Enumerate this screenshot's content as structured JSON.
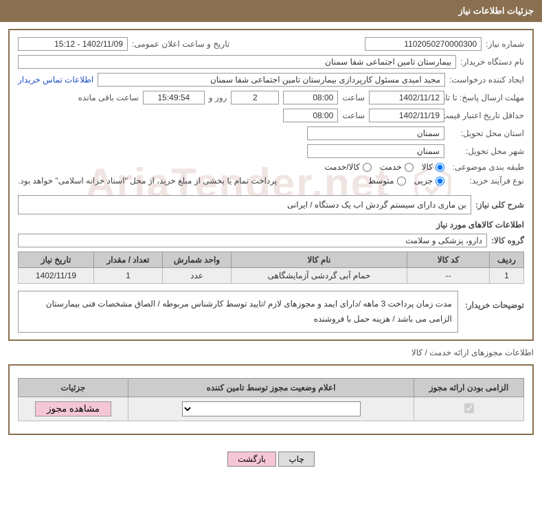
{
  "header": {
    "title": "جزئیات اطلاعات نیاز"
  },
  "info": {
    "need_no_label": "شماره نیاز:",
    "need_no": "1102050270000300",
    "announce_label": "تاریخ و ساعت اعلان عمومی:",
    "announce": "1402/11/09 - 15:12",
    "buyer_org_label": "نام دستگاه خریدار:",
    "buyer_org": "بیمارستان تامین اجتماعی شفا سمنان",
    "requester_label": "ایجاد کننده درخواست:",
    "requester": "مجید امیدی مسئول کارپردازی بیمارستان تامین اجتماعی شفا سمنان",
    "contact_link": "اطلاعات تماس خریدار",
    "reply_deadline_label": "مهلت ارسال پاسخ: تا تاریخ:",
    "reply_date": "1402/11/12",
    "time_label": "ساعت",
    "reply_time": "08:00",
    "days_remaining": "2",
    "days_remaining_suffix": "روز و",
    "time_remaining": "15:49:54",
    "time_remaining_suffix": "ساعت باقی مانده",
    "validity_label": "حداقل تاریخ اعتبار قیمت: تا تاریخ:",
    "validity_date": "1402/11/19",
    "validity_time": "08:00",
    "province_label": "استان محل تحویل:",
    "province": "سمنان",
    "city_label": "شهر محل تحویل:",
    "city": "سمنان",
    "category_label": "طبقه بندی موضوعی:",
    "cat_goods": "کالا",
    "cat_service": "خدمت",
    "cat_goods_service": "کالا/خدمت",
    "buy_type_label": "نوع فرآیند خرید:",
    "buy_partial": "جزیی",
    "buy_medium": "متوسط",
    "buy_note": "پرداخت تمام یا بخشی از مبلغ خرید، از محل \"اسناد خزانه اسلامی\" خواهد بود.",
    "desc_label": "شرح کلی نیاز:",
    "desc": "بن ماری دارای سیستم  گردش  اب یک دستگاه  / ایرانی",
    "goods_info_title": "اطلاعات کالاهای مورد نیاز",
    "goods_group_label": "گروه کالا:",
    "goods_group": "دارو، پزشکی و سلامت"
  },
  "table": {
    "headers": [
      "ردیف",
      "کد کالا",
      "نام کالا",
      "واحد شمارش",
      "تعداد / مقدار",
      "تاریخ نیاز"
    ],
    "rows": [
      [
        "1",
        "--",
        "حمام آبی گردشی آزمایشگاهی",
        "عدد",
        "1",
        "1402/11/19"
      ]
    ]
  },
  "buyer_notes": {
    "label": "توضیحات خریدار:",
    "text": "مدت زمان پرداخت 3 ماهه /دارای ایمد و مجوزهای لازم /تایید توسط کارشناس مربوطه / الصاق مشخصات فنی بیمارستان الزامی می باشد / هزینه حمل با فروشنده"
  },
  "license_section_title": "اطلاعات مجوزهای ارائه خدمت / کالا",
  "license": {
    "headers": [
      "الزامی بودن ارائه مجوز",
      "اعلام وضعیت مجوز توسط تامین کننده",
      "جزئیات"
    ],
    "view_btn": "مشاهده مجوز"
  },
  "footer": {
    "print": "چاپ",
    "back": "بازگشت"
  }
}
